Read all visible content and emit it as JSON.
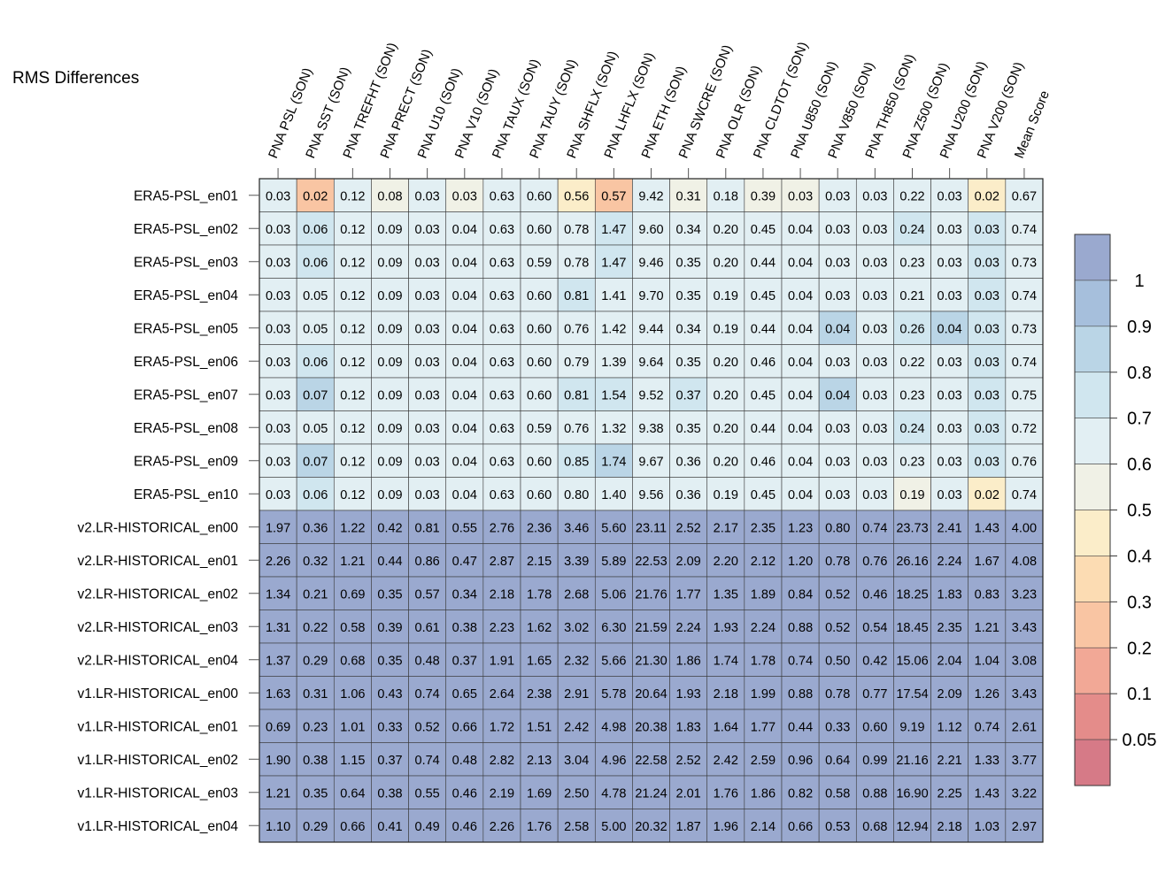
{
  "chart_data": {
    "type": "heatmap",
    "title": "RMS Differences",
    "columns": [
      "PNA PSL (SON)",
      "PNA SST (SON)",
      "PNA TREFHT (SON)",
      "PNA PRECT (SON)",
      "PNA U10 (SON)",
      "PNA V10 (SON)",
      "PNA TAUX (SON)",
      "PNA TAUY (SON)",
      "PNA SHFLX (SON)",
      "PNA LHFLX (SON)",
      "PNA ETH (SON)",
      "PNA SWCRE (SON)",
      "PNA OLR (SON)",
      "PNA CLDTOT (SON)",
      "PNA U850 (SON)",
      "PNA V850 (SON)",
      "PNA TH850 (SON)",
      "PNA Z500 (SON)",
      "PNA U200 (SON)",
      "PNA V200 (SON)",
      "Mean Score"
    ],
    "rows": [
      "ERA5-PSL_en01",
      "ERA5-PSL_en02",
      "ERA5-PSL_en03",
      "ERA5-PSL_en04",
      "ERA5-PSL_en05",
      "ERA5-PSL_en06",
      "ERA5-PSL_en07",
      "ERA5-PSL_en08",
      "ERA5-PSL_en09",
      "ERA5-PSL_en10",
      "v2.LR-HISTORICAL_en00",
      "v2.LR-HISTORICAL_en01",
      "v2.LR-HISTORICAL_en02",
      "v2.LR-HISTORICAL_en03",
      "v2.LR-HISTORICAL_en04",
      "v1.LR-HISTORICAL_en00",
      "v1.LR-HISTORICAL_en01",
      "v1.LR-HISTORICAL_en02",
      "v1.LR-HISTORICAL_en03",
      "v1.LR-HISTORICAL_en04"
    ],
    "values": [
      [
        "0.03",
        "0.02",
        "0.12",
        "0.08",
        "0.03",
        "0.03",
        "0.63",
        "0.60",
        "0.56",
        "0.57",
        "9.42",
        "0.31",
        "0.18",
        "0.39",
        "0.03",
        "0.03",
        "0.03",
        "0.22",
        "0.03",
        "0.02",
        "0.67"
      ],
      [
        "0.03",
        "0.06",
        "0.12",
        "0.09",
        "0.03",
        "0.04",
        "0.63",
        "0.60",
        "0.78",
        "1.47",
        "9.60",
        "0.34",
        "0.20",
        "0.45",
        "0.04",
        "0.03",
        "0.03",
        "0.24",
        "0.03",
        "0.03",
        "0.74"
      ],
      [
        "0.03",
        "0.06",
        "0.12",
        "0.09",
        "0.03",
        "0.04",
        "0.63",
        "0.59",
        "0.78",
        "1.47",
        "9.46",
        "0.35",
        "0.20",
        "0.44",
        "0.04",
        "0.03",
        "0.03",
        "0.23",
        "0.03",
        "0.03",
        "0.73"
      ],
      [
        "0.03",
        "0.05",
        "0.12",
        "0.09",
        "0.03",
        "0.04",
        "0.63",
        "0.60",
        "0.81",
        "1.41",
        "9.70",
        "0.35",
        "0.19",
        "0.45",
        "0.04",
        "0.03",
        "0.03",
        "0.21",
        "0.03",
        "0.03",
        "0.74"
      ],
      [
        "0.03",
        "0.05",
        "0.12",
        "0.09",
        "0.03",
        "0.04",
        "0.63",
        "0.60",
        "0.76",
        "1.42",
        "9.44",
        "0.34",
        "0.19",
        "0.44",
        "0.04",
        "0.04",
        "0.03",
        "0.26",
        "0.04",
        "0.03",
        "0.73"
      ],
      [
        "0.03",
        "0.06",
        "0.12",
        "0.09",
        "0.03",
        "0.04",
        "0.63",
        "0.60",
        "0.79",
        "1.39",
        "9.64",
        "0.35",
        "0.20",
        "0.46",
        "0.04",
        "0.03",
        "0.03",
        "0.22",
        "0.03",
        "0.03",
        "0.74"
      ],
      [
        "0.03",
        "0.07",
        "0.12",
        "0.09",
        "0.03",
        "0.04",
        "0.63",
        "0.60",
        "0.81",
        "1.54",
        "9.52",
        "0.37",
        "0.20",
        "0.45",
        "0.04",
        "0.04",
        "0.03",
        "0.23",
        "0.03",
        "0.03",
        "0.75"
      ],
      [
        "0.03",
        "0.05",
        "0.12",
        "0.09",
        "0.03",
        "0.04",
        "0.63",
        "0.59",
        "0.76",
        "1.32",
        "9.38",
        "0.35",
        "0.20",
        "0.44",
        "0.04",
        "0.03",
        "0.03",
        "0.24",
        "0.03",
        "0.03",
        "0.72"
      ],
      [
        "0.03",
        "0.07",
        "0.12",
        "0.09",
        "0.03",
        "0.04",
        "0.63",
        "0.60",
        "0.85",
        "1.74",
        "9.67",
        "0.36",
        "0.20",
        "0.46",
        "0.04",
        "0.03",
        "0.03",
        "0.23",
        "0.03",
        "0.03",
        "0.76"
      ],
      [
        "0.03",
        "0.06",
        "0.12",
        "0.09",
        "0.03",
        "0.04",
        "0.63",
        "0.60",
        "0.80",
        "1.40",
        "9.56",
        "0.36",
        "0.19",
        "0.45",
        "0.04",
        "0.03",
        "0.03",
        "0.19",
        "0.03",
        "0.02",
        "0.74"
      ],
      [
        "1.97",
        "0.36",
        "1.22",
        "0.42",
        "0.81",
        "0.55",
        "2.76",
        "2.36",
        "3.46",
        "5.60",
        "23.11",
        "2.52",
        "2.17",
        "2.35",
        "1.23",
        "0.80",
        "0.74",
        "23.73",
        "2.41",
        "1.43",
        "4.00"
      ],
      [
        "2.26",
        "0.32",
        "1.21",
        "0.44",
        "0.86",
        "0.47",
        "2.87",
        "2.15",
        "3.39",
        "5.89",
        "22.53",
        "2.09",
        "2.20",
        "2.12",
        "1.20",
        "0.78",
        "0.76",
        "26.16",
        "2.24",
        "1.67",
        "4.08"
      ],
      [
        "1.34",
        "0.21",
        "0.69",
        "0.35",
        "0.57",
        "0.34",
        "2.18",
        "1.78",
        "2.68",
        "5.06",
        "21.76",
        "1.77",
        "1.35",
        "1.89",
        "0.84",
        "0.52",
        "0.46",
        "18.25",
        "1.83",
        "0.83",
        "3.23"
      ],
      [
        "1.31",
        "0.22",
        "0.58",
        "0.39",
        "0.61",
        "0.38",
        "2.23",
        "1.62",
        "3.02",
        "6.30",
        "21.59",
        "2.24",
        "1.93",
        "2.24",
        "0.88",
        "0.52",
        "0.54",
        "18.45",
        "2.35",
        "1.21",
        "3.43"
      ],
      [
        "1.37",
        "0.29",
        "0.68",
        "0.35",
        "0.48",
        "0.37",
        "1.91",
        "1.65",
        "2.32",
        "5.66",
        "21.30",
        "1.86",
        "1.74",
        "1.78",
        "0.74",
        "0.50",
        "0.42",
        "15.06",
        "2.04",
        "1.04",
        "3.08"
      ],
      [
        "1.63",
        "0.31",
        "1.06",
        "0.43",
        "0.74",
        "0.65",
        "2.64",
        "2.38",
        "2.91",
        "5.78",
        "20.64",
        "1.93",
        "2.18",
        "1.99",
        "0.88",
        "0.78",
        "0.77",
        "17.54",
        "2.09",
        "1.26",
        "3.43"
      ],
      [
        "0.69",
        "0.23",
        "1.01",
        "0.33",
        "0.52",
        "0.66",
        "1.72",
        "1.51",
        "2.42",
        "4.98",
        "20.38",
        "1.83",
        "1.64",
        "1.77",
        "0.44",
        "0.33",
        "0.60",
        "9.19",
        "1.12",
        "0.74",
        "2.61"
      ],
      [
        "1.90",
        "0.38",
        "1.15",
        "0.37",
        "0.74",
        "0.48",
        "2.82",
        "2.13",
        "3.04",
        "4.96",
        "22.58",
        "2.52",
        "2.42",
        "2.59",
        "0.96",
        "0.64",
        "0.99",
        "21.16",
        "2.21",
        "1.33",
        "3.77"
      ],
      [
        "1.21",
        "0.35",
        "0.64",
        "0.38",
        "0.55",
        "0.46",
        "2.19",
        "1.69",
        "2.50",
        "4.78",
        "21.24",
        "2.01",
        "1.76",
        "1.86",
        "0.82",
        "0.58",
        "0.88",
        "16.90",
        "2.25",
        "1.43",
        "3.22"
      ],
      [
        "1.10",
        "0.29",
        "0.66",
        "0.41",
        "0.49",
        "0.46",
        "2.26",
        "1.76",
        "2.58",
        "5.00",
        "20.32",
        "1.87",
        "1.96",
        "2.14",
        "0.66",
        "0.53",
        "0.68",
        "12.94",
        "2.18",
        "1.03",
        "2.97"
      ]
    ],
    "colorbar": {
      "tick_labels": [
        "1",
        "0.9",
        "0.8",
        "0.7",
        "0.6",
        "0.5",
        "0.4",
        "0.3",
        "0.2",
        "0.1",
        "0.05"
      ],
      "bins": [
        {
          "min": 1.0,
          "max": null,
          "color": "#9aa9cf"
        },
        {
          "min": 0.9,
          "max": 1.0,
          "color": "#a6bfdc"
        },
        {
          "min": 0.8,
          "max": 0.9,
          "color": "#bad5e6"
        },
        {
          "min": 0.7,
          "max": 0.8,
          "color": "#d0e6ef"
        },
        {
          "min": 0.6,
          "max": 0.7,
          "color": "#e2eff3"
        },
        {
          "min": 0.5,
          "max": 0.6,
          "color": "#f0f1e6"
        },
        {
          "min": 0.4,
          "max": 0.5,
          "color": "#fbedc9"
        },
        {
          "min": 0.3,
          "max": 0.4,
          "color": "#fcdcb3"
        },
        {
          "min": 0.2,
          "max": 0.3,
          "color": "#f9c5a3"
        },
        {
          "min": 0.1,
          "max": 0.2,
          "color": "#f2a896"
        },
        {
          "min": 0.05,
          "max": 0.1,
          "color": "#e48c8a"
        },
        {
          "min": null,
          "max": 0.05,
          "color": "#d67a87"
        }
      ]
    },
    "column_normalization": "value relative to column reference (ERA5-PSL ensemble mean)",
    "grid": true
  }
}
